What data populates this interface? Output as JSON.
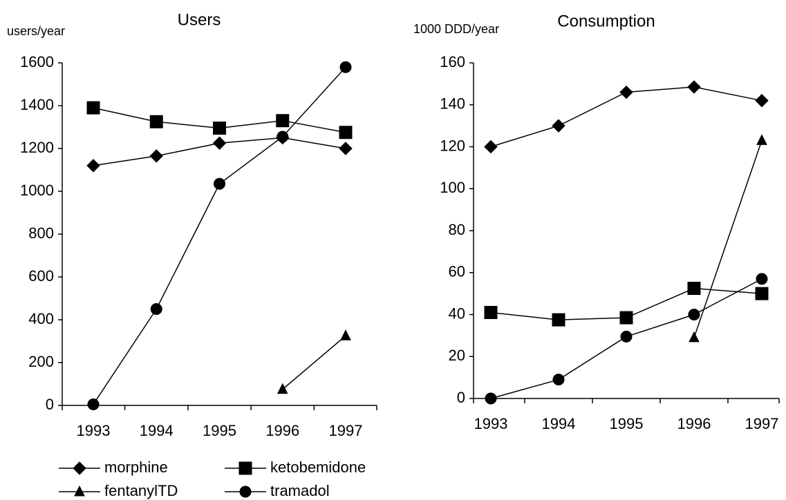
{
  "chart_data": [
    {
      "type": "line",
      "title": "Users",
      "y_label": "users/year",
      "categories": [
        "1993",
        "1994",
        "1995",
        "1996",
        "1997"
      ],
      "ylim": [
        0,
        1600
      ],
      "yticks": [
        0,
        200,
        400,
        600,
        800,
        1000,
        1200,
        1400,
        1600
      ],
      "series": [
        {
          "name": "morphine",
          "color": "#000000",
          "marker": "diamond",
          "values": [
            1120,
            1165,
            1225,
            1250,
            1200
          ]
        },
        {
          "name": "ketobemidone",
          "color": "#000000",
          "marker": "square",
          "values": [
            1390,
            1325,
            1295,
            1330,
            1275
          ]
        },
        {
          "name": "fentanylTD",
          "color": "#000000",
          "marker": "triangle",
          "values": [
            null,
            null,
            null,
            75,
            325
          ]
        },
        {
          "name": "tramadol",
          "color": "#000000",
          "marker": "circle",
          "values": [
            5,
            450,
            1035,
            1255,
            1580
          ]
        }
      ]
    },
    {
      "type": "line",
      "title": "Consumption",
      "y_label": "1000 DDD/year",
      "categories": [
        "1993",
        "1994",
        "1995",
        "1996",
        "1997"
      ],
      "ylim": [
        0,
        160
      ],
      "yticks": [
        0,
        20,
        40,
        60,
        80,
        100,
        120,
        140,
        160
      ],
      "series": [
        {
          "color": "#000000",
          "marker": "diamond",
          "values": [
            120,
            130,
            146,
            148.5,
            142
          ]
        },
        {
          "color": "#000000",
          "marker": "square",
          "values": [
            41,
            37.5,
            38.5,
            52.5,
            50
          ]
        },
        {
          "color": "#000000",
          "marker": "triangle",
          "values": [
            null,
            null,
            null,
            29,
            123
          ]
        },
        {
          "color": "#000000",
          "marker": "circle",
          "values": [
            0,
            9,
            29.5,
            40,
            57
          ]
        }
      ]
    }
  ]
}
